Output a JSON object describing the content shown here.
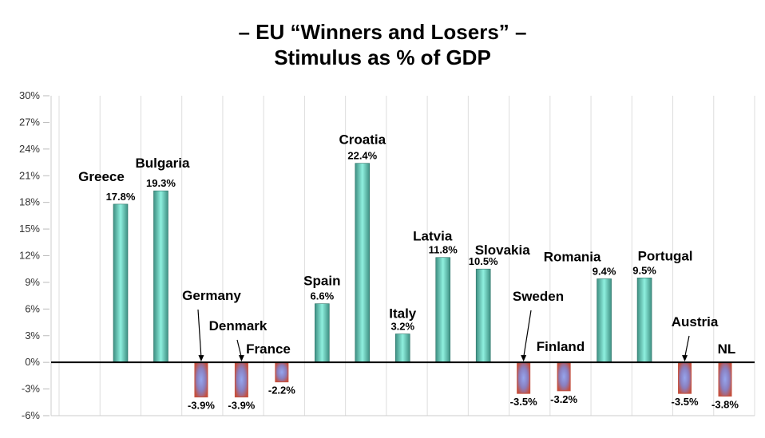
{
  "title_line1": "– EU “Winners and Losers” –",
  "title_line2": "Stimulus as % of GDP",
  "chart_data": {
    "type": "bar",
    "title": "– EU “Winners and Losers” – Stimulus as % of GDP",
    "xlabel": "",
    "ylabel": "",
    "ylim": [
      -6,
      30
    ],
    "y_ticks": [
      "30%",
      "27%",
      "24%",
      "21%",
      "18%",
      "15%",
      "12%",
      "9%",
      "6%",
      "3%",
      "0%",
      "-3%",
      "-6%"
    ],
    "grid": "vertical",
    "categories": [
      "Greece",
      "Bulgaria",
      "Germany",
      "Denmark",
      "France",
      "Spain",
      "Croatia",
      "Italy",
      "Latvia",
      "Slovakia",
      "Sweden",
      "Finland",
      "Romania",
      "Portugal",
      "Austria",
      "NL"
    ],
    "values": [
      17.8,
      19.3,
      -3.9,
      -3.9,
      -2.2,
      6.6,
      22.4,
      3.2,
      11.8,
      10.5,
      -3.5,
      -3.2,
      9.4,
      9.5,
      -3.5,
      -3.8
    ],
    "value_labels": [
      "17.8%",
      "19.3%",
      "-3.9%",
      "-3.9%",
      "-2.2%",
      "6.6%",
      "22.4%",
      "3.2%",
      "11.8%",
      "10.5%",
      "-3.5%",
      "-3.2%",
      "9.4%",
      "9.5%",
      "-3.5%",
      "-3.8%"
    ],
    "colors": {
      "positive_fill": "#3e8f82",
      "positive_highlight": "#8ff0df",
      "negative_border": "#c4503f",
      "negative_center": "#96a6ee",
      "zero_line": "#000000",
      "grid": "#dddddd"
    }
  }
}
